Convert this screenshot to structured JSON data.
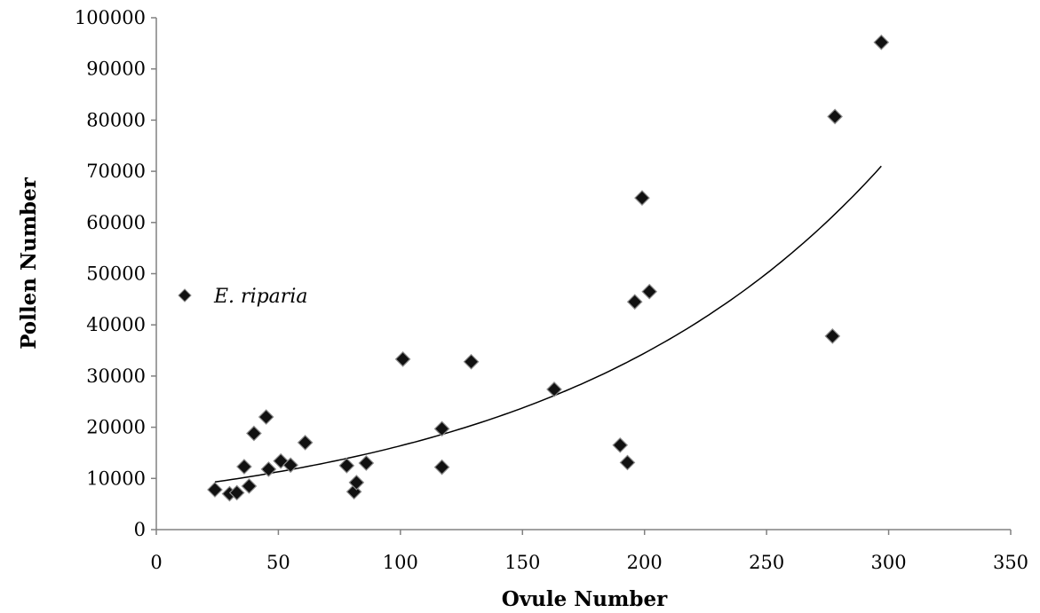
{
  "chart_data": {
    "type": "scatter",
    "xlabel": "Ovule Number",
    "ylabel": "Pollen Number",
    "xlim": [
      0,
      350
    ],
    "ylim": [
      0,
      100000
    ],
    "x_ticks": [
      0,
      50,
      100,
      150,
      200,
      250,
      300,
      350
    ],
    "y_ticks": [
      0,
      10000,
      20000,
      30000,
      40000,
      50000,
      60000,
      70000,
      80000,
      90000,
      100000
    ],
    "grid": false,
    "legend_position": "left-middle",
    "series": [
      {
        "name": "E. riparia",
        "marker": "diamond",
        "color": "#000000",
        "points": [
          [
            24,
            7800
          ],
          [
            30,
            7000
          ],
          [
            33,
            7200
          ],
          [
            36,
            12300
          ],
          [
            38,
            8500
          ],
          [
            40,
            18800
          ],
          [
            45,
            22000
          ],
          [
            46,
            11800
          ],
          [
            51,
            13400
          ],
          [
            55,
            12600
          ],
          [
            61,
            17000
          ],
          [
            78,
            12500
          ],
          [
            81,
            7400
          ],
          [
            82,
            9200
          ],
          [
            86,
            13000
          ],
          [
            101,
            33300
          ],
          [
            117,
            19700
          ],
          [
            117,
            12200
          ],
          [
            129,
            32800
          ],
          [
            163,
            27400
          ],
          [
            190,
            16500
          ],
          [
            193,
            13100
          ],
          [
            196,
            44500
          ],
          [
            199,
            64800
          ],
          [
            202,
            46500
          ],
          [
            277,
            37800
          ],
          [
            278,
            80700
          ],
          [
            297,
            95200
          ]
        ]
      }
    ],
    "trendline": {
      "type": "exponential",
      "x_range": [
        24,
        297
      ],
      "y_start": 9300,
      "y_end": 71000
    }
  }
}
